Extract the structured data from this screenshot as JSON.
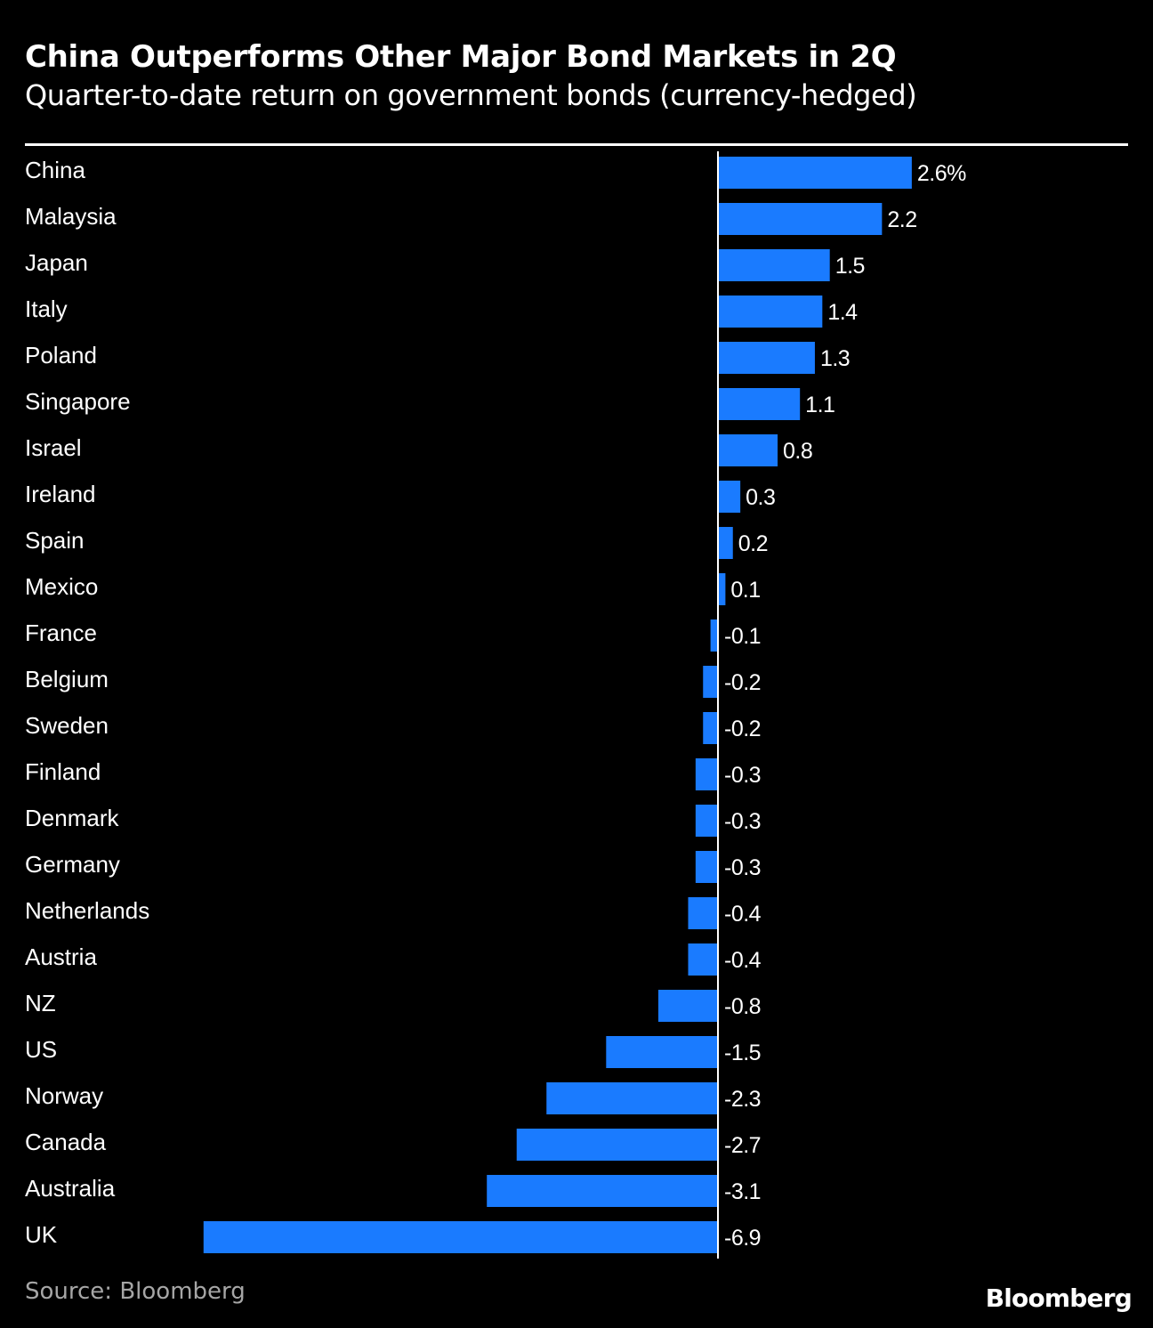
{
  "colors": {
    "background": "#000000",
    "bar": "#1a7bff",
    "text": "#ffffff",
    "source_text": "#a6a6a6"
  },
  "footer": {
    "source": "Source: Bloomberg",
    "brand": "Bloomberg"
  },
  "chart_data": {
    "type": "bar",
    "orientation": "horizontal",
    "title": "China Outperforms Other Major Bond Markets in 2Q",
    "subtitle": "Quarter-to-date return on government bonds (currency-hedged)",
    "unit": "%",
    "categories": [
      "China",
      "Malaysia",
      "Japan",
      "Italy",
      "Poland",
      "Singapore",
      "Israel",
      "Ireland",
      "Spain",
      "Mexico",
      "France",
      "Belgium",
      "Sweden",
      "Finland",
      "Denmark",
      "Germany",
      "Netherlands",
      "Austria",
      "NZ",
      "US",
      "Norway",
      "Canada",
      "Australia",
      "UK"
    ],
    "values": [
      2.6,
      2.2,
      1.5,
      1.4,
      1.3,
      1.1,
      0.8,
      0.3,
      0.2,
      0.1,
      -0.1,
      -0.2,
      -0.2,
      -0.3,
      -0.3,
      -0.3,
      -0.4,
      -0.4,
      -0.8,
      -1.5,
      -2.3,
      -2.7,
      -3.1,
      -6.9
    ],
    "value_labels": [
      "2.6%",
      "2.2",
      "1.5",
      "1.4",
      "1.3",
      "1.1",
      "0.8",
      "0.3",
      "0.2",
      "0.1",
      "-0.1",
      "-0.2",
      "-0.2",
      "-0.3",
      "-0.3",
      "-0.3",
      "-0.4",
      "-0.4",
      "-0.8",
      "-1.5",
      "-2.3",
      "-2.7",
      "-3.1",
      "-6.9"
    ],
    "xlim": [
      -6.9,
      2.6
    ],
    "grid": false,
    "legend": "none"
  }
}
